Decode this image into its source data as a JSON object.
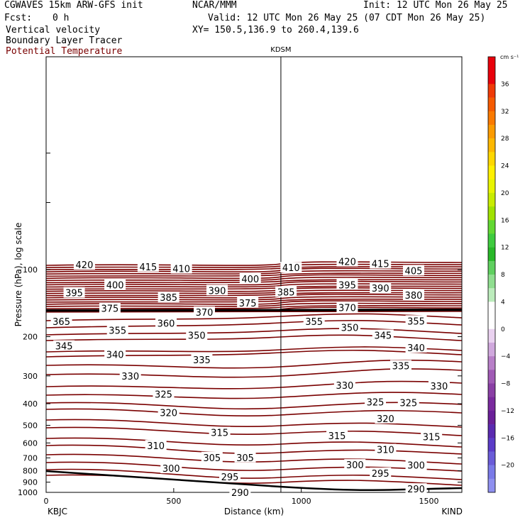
{
  "header": {
    "model": "CGWAVES 15km ARW-GFS init",
    "org": "NCAR/MMM",
    "init": "Init: 12 UTC Mon 26 May 25",
    "fcst_label": "Fcst:",
    "fcst_value": "0 h",
    "valid": "Valid: 12 UTC Mon 26 May 25 (07 CDT Mon 26 May 25)",
    "field1": "Vertical velocity",
    "field2": "Boundary Layer Tracer",
    "field3": "Potential Temperature",
    "xy": "XY= 150.5,136.9 to 260.4,139.6"
  },
  "colorbar": {
    "unit": "cm s⁻¹",
    "labels": [
      "36",
      "32",
      "28",
      "24",
      "20",
      "16",
      "12",
      "8",
      "4",
      "0",
      "−4",
      "−8",
      "−12",
      "−16",
      "−20"
    ],
    "colors": [
      "#e8000b",
      "#e8000b",
      "#ef3a06",
      "#f55a00",
      "#fa7a00",
      "#fb9b00",
      "#fdb800",
      "#fed700",
      "#fff000",
      "#e8f400",
      "#c8ec00",
      "#a0e200",
      "#62d832",
      "#3ecb3e",
      "#28b828",
      "#5fd05f",
      "#8fde8f",
      "#bcecbc",
      "#ffffff",
      "#ffffff",
      "#ead2f0",
      "#d0a8dd",
      "#b87fc8",
      "#a05ab5",
      "#8a3fa5",
      "#7a2a9e",
      "#6a1f98",
      "#5a2ab0",
      "#5b3cc8",
      "#6a5cd8",
      "#7a7ae8",
      "#8f90f0"
    ]
  },
  "chart_data": {
    "type": "line",
    "title": "KDSM",
    "xlabel": "Distance (km)",
    "ylabel": "Pressure (hPa), log scale",
    "x_ticks": [
      "0",
      "500",
      "1000",
      "1500"
    ],
    "y_ticks": [
      "100",
      "200",
      "300",
      "400",
      "500",
      "600",
      "700",
      "800",
      "900",
      "1000"
    ],
    "xlim": [
      0,
      1630
    ],
    "ylim_hpa": [
      1050,
      10
    ],
    "left_station": "KBJC",
    "right_station": "KIND",
    "marker_station_km": 920,
    "isentrope_color": "#7a0000",
    "contour_labels": [
      {
        "v": "420",
        "x": 150,
        "p": 95
      },
      {
        "v": "415",
        "x": 400,
        "p": 97
      },
      {
        "v": "410",
        "x": 530,
        "p": 99
      },
      {
        "v": "410",
        "x": 960,
        "p": 98
      },
      {
        "v": "420",
        "x": 1180,
        "p": 92
      },
      {
        "v": "415",
        "x": 1310,
        "p": 94
      },
      {
        "v": "405",
        "x": 1440,
        "p": 101
      },
      {
        "v": "400",
        "x": 270,
        "p": 117
      },
      {
        "v": "400",
        "x": 800,
        "p": 110
      },
      {
        "v": "395",
        "x": 110,
        "p": 127
      },
      {
        "v": "395",
        "x": 1180,
        "p": 117
      },
      {
        "v": "390",
        "x": 670,
        "p": 124
      },
      {
        "v": "390",
        "x": 1310,
        "p": 121
      },
      {
        "v": "385",
        "x": 480,
        "p": 133
      },
      {
        "v": "385",
        "x": 940,
        "p": 126
      },
      {
        "v": "380",
        "x": 1440,
        "p": 130
      },
      {
        "v": "375",
        "x": 250,
        "p": 149
      },
      {
        "v": "375",
        "x": 790,
        "p": 141
      },
      {
        "v": "370",
        "x": 620,
        "p": 155
      },
      {
        "v": "370",
        "x": 1180,
        "p": 148
      },
      {
        "v": "365",
        "x": 60,
        "p": 171
      },
      {
        "v": "360",
        "x": 470,
        "p": 174
      },
      {
        "v": "355",
        "x": 280,
        "p": 187
      },
      {
        "v": "355",
        "x": 1050,
        "p": 171
      },
      {
        "v": "355",
        "x": 1450,
        "p": 170
      },
      {
        "v": "350",
        "x": 590,
        "p": 197
      },
      {
        "v": "350",
        "x": 1190,
        "p": 182
      },
      {
        "v": "345",
        "x": 70,
        "p": 220
      },
      {
        "v": "345",
        "x": 1320,
        "p": 197
      },
      {
        "v": "340",
        "x": 270,
        "p": 240
      },
      {
        "v": "340",
        "x": 1450,
        "p": 224
      },
      {
        "v": "335",
        "x": 610,
        "p": 254
      },
      {
        "v": "335",
        "x": 1390,
        "p": 270
      },
      {
        "v": "330",
        "x": 330,
        "p": 300
      },
      {
        "v": "330",
        "x": 1170,
        "p": 330
      },
      {
        "v": "330",
        "x": 1540,
        "p": 333
      },
      {
        "v": "325",
        "x": 460,
        "p": 362
      },
      {
        "v": "325",
        "x": 1290,
        "p": 393
      },
      {
        "v": "325",
        "x": 1420,
        "p": 396
      },
      {
        "v": "320",
        "x": 480,
        "p": 439
      },
      {
        "v": "320",
        "x": 1330,
        "p": 466
      },
      {
        "v": "315",
        "x": 680,
        "p": 538
      },
      {
        "v": "315",
        "x": 1140,
        "p": 556
      },
      {
        "v": "315",
        "x": 1510,
        "p": 563
      },
      {
        "v": "310",
        "x": 430,
        "p": 617
      },
      {
        "v": "310",
        "x": 1330,
        "p": 642
      },
      {
        "v": "305",
        "x": 650,
        "p": 697
      },
      {
        "v": "305",
        "x": 780,
        "p": 697
      },
      {
        "v": "300",
        "x": 490,
        "p": 780
      },
      {
        "v": "300",
        "x": 1210,
        "p": 752
      },
      {
        "v": "300",
        "x": 1450,
        "p": 754
      },
      {
        "v": "295",
        "x": 720,
        "p": 852
      },
      {
        "v": "295",
        "x": 1310,
        "p": 820
      },
      {
        "v": "290",
        "x": 760,
        "p": 1000
      },
      {
        "v": "290",
        "x": 1450,
        "p": 965
      }
    ]
  }
}
